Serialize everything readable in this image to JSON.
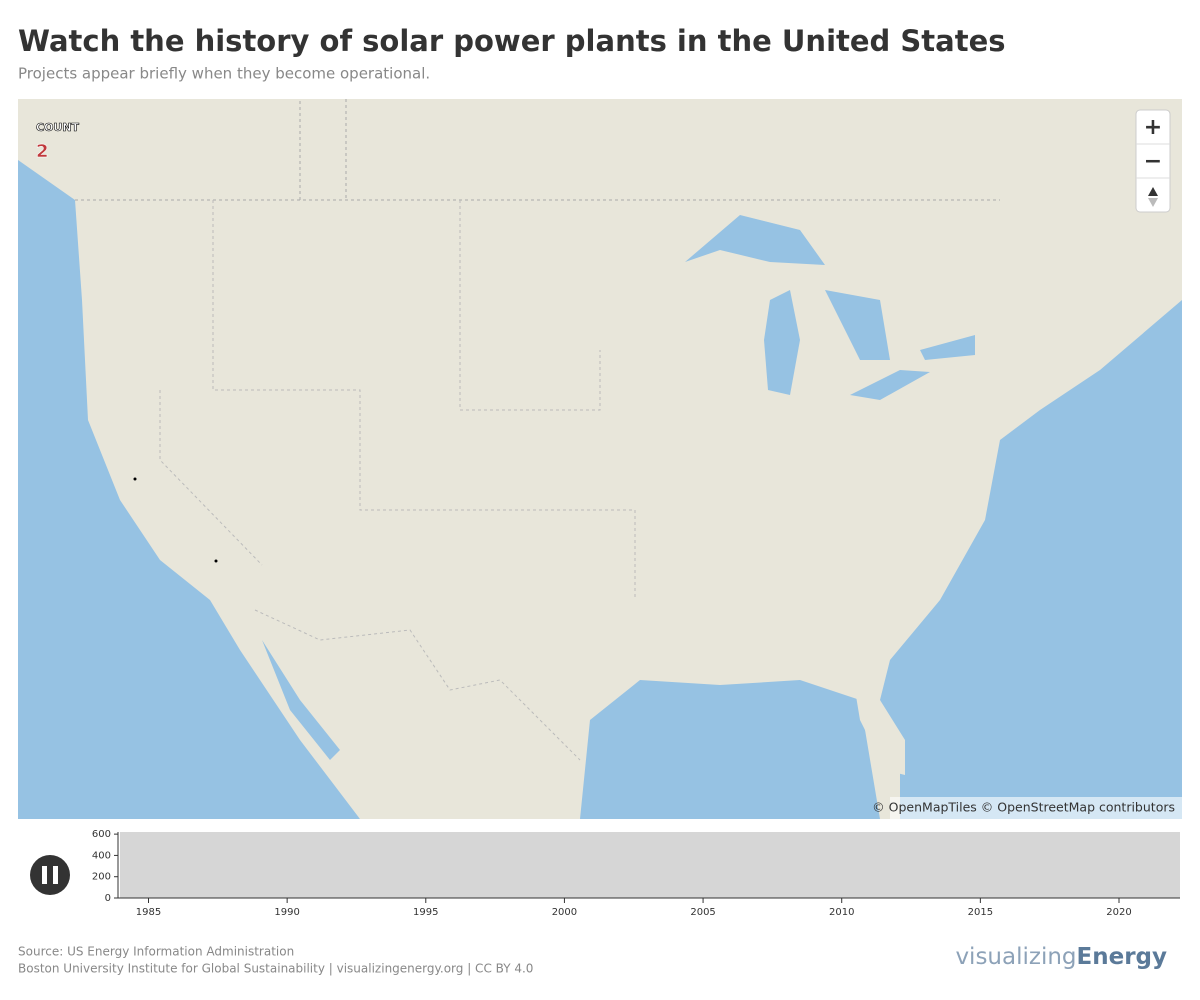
{
  "header": {
    "title": "Watch the history of solar power plants in the United States",
    "subtitle": "Projects appear briefly when they become operational."
  },
  "map": {
    "count_label": "COUNT",
    "count": 2,
    "zoom_in": "+",
    "zoom_out": "−",
    "attribution": "© OpenMapTiles © OpenStreetMap contributors"
  },
  "timeline": {
    "ylim": [
      0,
      620
    ],
    "yticks": [
      0,
      200,
      400,
      600
    ],
    "xlim": [
      1983.9,
      2022.2
    ],
    "xticks": [
      1985,
      1990,
      1995,
      2000,
      2005,
      2010,
      2015,
      2020
    ]
  },
  "footer": {
    "source": "Source: US Energy Information Administration",
    "credit": "Boston University Institute for Global Sustainability | visualizingenergy.org | CC BY 4.0",
    "logo_light": "visualizing",
    "logo_bold": "Energy"
  }
}
